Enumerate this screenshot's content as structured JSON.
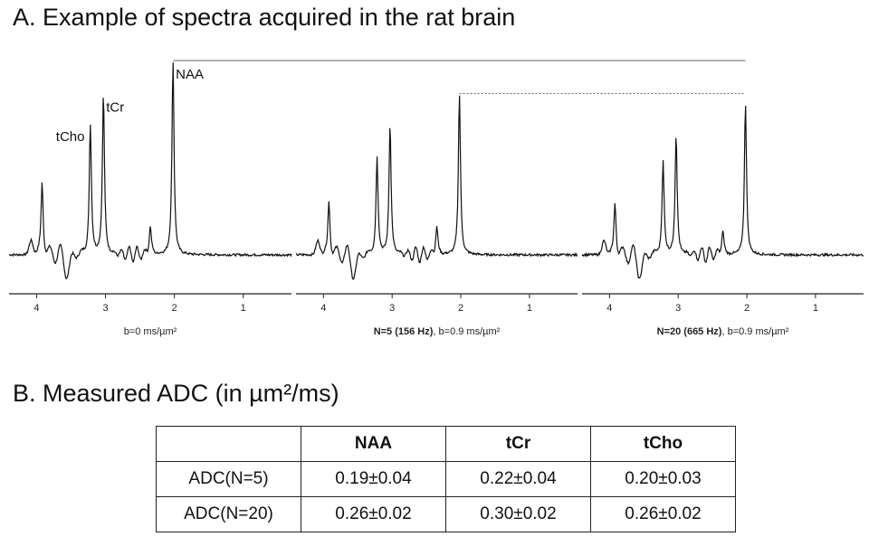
{
  "title_a": "A. Example of spectra acquired in the rat brain",
  "title_b": "B. Measured ADC (in µm²/ms)",
  "chart_data": {
    "type": "line",
    "xaxis_direction": "reversed",
    "xlim": [
      4.4,
      0.3
    ],
    "xticks": [
      4,
      3,
      2,
      1
    ],
    "panels": [
      {
        "caption": "b=0 ms/µm²",
        "caption_bold": "",
        "peak_labels": [
          "NAA",
          "tCr",
          "tCho"
        ],
        "peaks": [
          {
            "name": "NAA",
            "ppm": 2.02,
            "height": 1.0
          },
          {
            "name": "tCr",
            "ppm": 3.03,
            "height": 0.83
          },
          {
            "name": "tCho",
            "ppm": 3.22,
            "height": 0.67
          },
          {
            "ppm": 3.92,
            "height": 0.38
          },
          {
            "ppm": 2.35,
            "height": 0.15
          }
        ]
      },
      {
        "caption": ", b=0.9 ms/µm²",
        "caption_bold": "N=5 (156 Hz)",
        "peaks": [
          {
            "name": "NAA",
            "ppm": 2.02,
            "height": 0.83
          },
          {
            "name": "tCr",
            "ppm": 3.03,
            "height": 0.67
          },
          {
            "name": "tCho",
            "ppm": 3.22,
            "height": 0.5
          },
          {
            "ppm": 3.92,
            "height": 0.28
          },
          {
            "ppm": 2.35,
            "height": 0.15
          }
        ]
      },
      {
        "caption": ", b=0.9 ms/µm²",
        "caption_bold": "N=20 (665 Hz)",
        "peaks": [
          {
            "name": "NAA",
            "ppm": 2.02,
            "height": 0.78
          },
          {
            "name": "tCr",
            "ppm": 3.03,
            "height": 0.62
          },
          {
            "name": "tCho",
            "ppm": 3.22,
            "height": 0.48
          },
          {
            "ppm": 3.92,
            "height": 0.27
          },
          {
            "ppm": 2.35,
            "height": 0.13
          }
        ]
      }
    ],
    "reference_lines": [
      {
        "style": "solid",
        "from_panel": 0,
        "to_panel": 2,
        "level": "NAA height at b=0"
      },
      {
        "style": "dotted",
        "from_panel": 1,
        "to_panel": 2,
        "level": "NAA height at N=5"
      }
    ]
  },
  "table": {
    "headers": [
      "",
      "NAA",
      "tCr",
      "tCho"
    ],
    "rows": [
      [
        "ADC(N=5)",
        "0.19±0.04",
        "0.22±0.04",
        "0.20±0.03"
      ],
      [
        "ADC(N=20)",
        "0.26±0.02",
        "0.30±0.02",
        "0.26±0.02"
      ]
    ]
  }
}
